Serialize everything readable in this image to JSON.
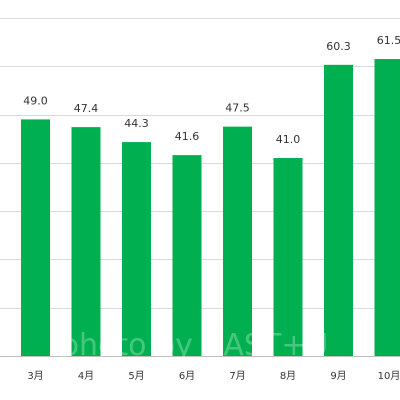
{
  "chart_data": {
    "type": "bar",
    "categories": [
      "3月",
      "4月",
      "5月",
      "6月",
      "7月",
      "8月",
      "9月",
      "10月"
    ],
    "values": [
      49.0,
      47.4,
      44.3,
      41.6,
      47.5,
      41.0,
      60.3,
      61.5
    ],
    "data_labels": [
      "49.0",
      "47.4",
      "44.3",
      "41.6",
      "47.5",
      "41.0",
      "60.3",
      "61.5"
    ],
    "ylim": [
      0,
      70
    ],
    "grid": true,
    "bar_color": "#00b050",
    "gridline_color": "#d9d9d9"
  },
  "watermark": {
    "text": "photo by CAST+U"
  }
}
